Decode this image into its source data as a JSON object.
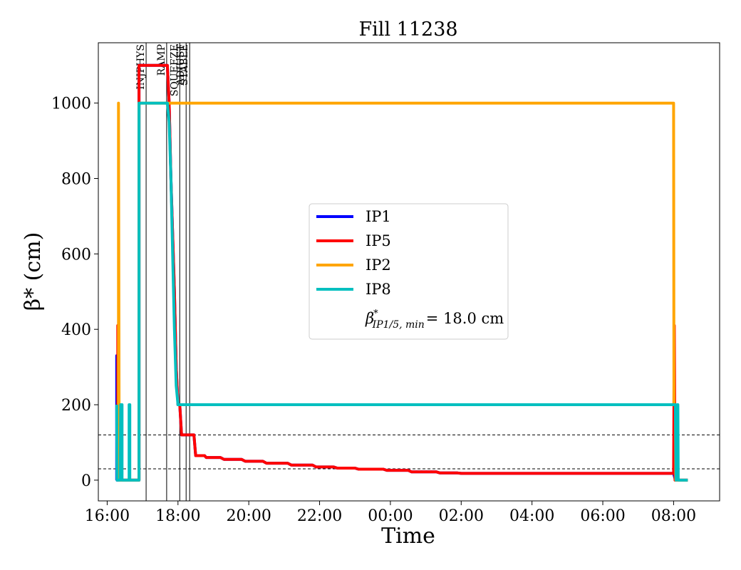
{
  "chart_data": {
    "type": "line",
    "title": "Fill 11238",
    "xlabel": "Time",
    "ylabel": "β* (cm)",
    "xlim": [
      15.75,
      33.3
    ],
    "ylim": [
      -55,
      1160
    ],
    "x_unit": "hours from 16:00 on the first day (values above 24 are after midnight)",
    "x_ticks": [
      {
        "x": 16,
        "label": "16:00"
      },
      {
        "x": 18,
        "label": "18:00"
      },
      {
        "x": 20,
        "label": "20:00"
      },
      {
        "x": 22,
        "label": "22:00"
      },
      {
        "x": 24,
        "label": "00:00"
      },
      {
        "x": 26,
        "label": "02:00"
      },
      {
        "x": 28,
        "label": "04:00"
      },
      {
        "x": 30,
        "label": "06:00"
      },
      {
        "x": 32,
        "label": "08:00"
      }
    ],
    "y_ticks": [
      0,
      200,
      400,
      600,
      800,
      1000
    ],
    "grid": false,
    "legend_position": "center",
    "phases": [
      {
        "label": "INJPHYS",
        "x": 17.1
      },
      {
        "label": "RAMP",
        "x": 17.68
      },
      {
        "label": "SQUEEZE",
        "x": 18.05
      },
      {
        "label": "ADJUST",
        "x": 18.23
      },
      {
        "label": "STABLE",
        "x": 18.33
      }
    ],
    "hlines": [
      120,
      30
    ],
    "series": [
      {
        "name": "IP1",
        "color": "#0000ff",
        "points": [
          [
            16.27,
            0
          ],
          [
            16.27,
            330
          ],
          [
            16.28,
            0
          ],
          [
            16.29,
            200
          ],
          [
            16.31,
            200
          ],
          [
            16.31,
            0
          ],
          [
            16.9,
            0
          ],
          [
            16.9,
            1100
          ],
          [
            17.7,
            1100
          ],
          [
            17.75,
            1000
          ],
          [
            17.8,
            800
          ],
          [
            17.9,
            500
          ],
          [
            17.95,
            300
          ],
          [
            18.0,
            200
          ],
          [
            18.05,
            200
          ],
          [
            18.1,
            120
          ],
          [
            18.45,
            120
          ],
          [
            18.5,
            65
          ],
          [
            18.75,
            65
          ],
          [
            18.8,
            60
          ],
          [
            19.2,
            60
          ],
          [
            19.3,
            55
          ],
          [
            19.8,
            55
          ],
          [
            19.9,
            50
          ],
          [
            20.4,
            50
          ],
          [
            20.5,
            45
          ],
          [
            21.1,
            45
          ],
          [
            21.2,
            40
          ],
          [
            21.8,
            40
          ],
          [
            21.9,
            35
          ],
          [
            22.4,
            35
          ],
          [
            22.5,
            32
          ],
          [
            23.0,
            32
          ],
          [
            23.1,
            29
          ],
          [
            23.8,
            29
          ],
          [
            23.9,
            26
          ],
          [
            24.5,
            26
          ],
          [
            24.6,
            22
          ],
          [
            25.3,
            22
          ],
          [
            25.4,
            19
          ],
          [
            25.9,
            19
          ],
          [
            26.0,
            18
          ],
          [
            32.0,
            18
          ],
          [
            32.05,
            0
          ],
          [
            32.4,
            0
          ]
        ]
      },
      {
        "name": "IP5",
        "color": "#ff0000",
        "points": [
          [
            16.3,
            0
          ],
          [
            16.3,
            410
          ],
          [
            16.31,
            0
          ],
          [
            16.9,
            0
          ],
          [
            16.9,
            1100
          ],
          [
            17.7,
            1100
          ],
          [
            17.75,
            1000
          ],
          [
            17.8,
            800
          ],
          [
            17.9,
            500
          ],
          [
            17.95,
            300
          ],
          [
            18.0,
            200
          ],
          [
            18.05,
            200
          ],
          [
            18.1,
            120
          ],
          [
            18.45,
            120
          ],
          [
            18.5,
            65
          ],
          [
            18.75,
            65
          ],
          [
            18.8,
            60
          ],
          [
            19.2,
            60
          ],
          [
            19.3,
            55
          ],
          [
            19.8,
            55
          ],
          [
            19.9,
            50
          ],
          [
            20.4,
            50
          ],
          [
            20.5,
            45
          ],
          [
            21.1,
            45
          ],
          [
            21.2,
            40
          ],
          [
            21.8,
            40
          ],
          [
            21.9,
            35
          ],
          [
            22.4,
            35
          ],
          [
            22.5,
            32
          ],
          [
            23.0,
            32
          ],
          [
            23.1,
            29
          ],
          [
            23.8,
            29
          ],
          [
            23.9,
            26
          ],
          [
            24.5,
            26
          ],
          [
            24.6,
            22
          ],
          [
            25.3,
            22
          ],
          [
            25.4,
            19
          ],
          [
            25.9,
            19
          ],
          [
            26.0,
            18
          ],
          [
            32.0,
            18
          ],
          [
            32.02,
            410
          ],
          [
            32.04,
            0
          ],
          [
            32.4,
            0
          ]
        ]
      },
      {
        "name": "IP2",
        "color": "#ffa500",
        "points": [
          [
            16.32,
            0
          ],
          [
            16.32,
            1000
          ],
          [
            16.34,
            0
          ],
          [
            16.35,
            200
          ],
          [
            16.37,
            200
          ],
          [
            16.37,
            0
          ],
          [
            16.9,
            0
          ],
          [
            16.9,
            1000
          ],
          [
            32.0,
            1000
          ],
          [
            32.01,
            200
          ],
          [
            32.05,
            200
          ],
          [
            32.06,
            0
          ],
          [
            32.4,
            0
          ]
        ]
      },
      {
        "name": "IP8",
        "color": "#00bfbf",
        "points": [
          [
            16.27,
            200
          ],
          [
            16.28,
            0
          ],
          [
            16.37,
            0
          ],
          [
            16.38,
            200
          ],
          [
            16.42,
            200
          ],
          [
            16.42,
            0
          ],
          [
            16.62,
            0
          ],
          [
            16.62,
            200
          ],
          [
            16.64,
            200
          ],
          [
            16.64,
            0
          ],
          [
            16.9,
            0
          ],
          [
            16.9,
            1000
          ],
          [
            17.7,
            1000
          ],
          [
            17.75,
            950
          ],
          [
            17.8,
            800
          ],
          [
            17.85,
            600
          ],
          [
            17.9,
            400
          ],
          [
            17.95,
            250
          ],
          [
            18.0,
            200
          ],
          [
            32.05,
            200
          ],
          [
            32.07,
            0
          ],
          [
            32.1,
            200
          ],
          [
            32.12,
            200
          ],
          [
            32.13,
            0
          ],
          [
            32.4,
            0
          ]
        ]
      }
    ],
    "legend_extra": {
      "symbol": "β",
      "subscript": "IP1/5, min",
      "text": "= 18.0 cm"
    }
  }
}
